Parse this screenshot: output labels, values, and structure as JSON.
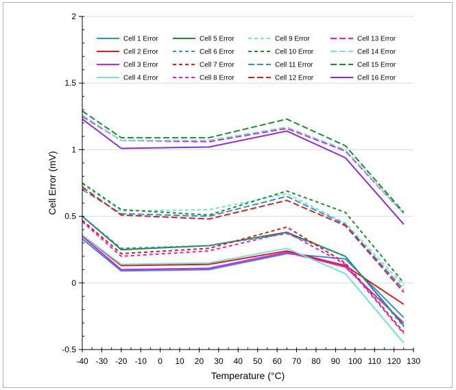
{
  "chart_data": {
    "type": "line",
    "xlabel": "Temperature (°C)",
    "ylabel": "Cell Error (mV)",
    "xlim": [
      -40,
      130
    ],
    "ylim": [
      -0.5,
      2
    ],
    "xticks": [
      -40,
      -30,
      -20,
      -10,
      0,
      10,
      20,
      30,
      40,
      50,
      60,
      70,
      80,
      90,
      100,
      110,
      120,
      130
    ],
    "yticks": [
      -0.5,
      0,
      0.5,
      1,
      1.5,
      2
    ],
    "ytick_labels": [
      "-0.5",
      "0",
      "0.5",
      "1",
      "1.5",
      "2"
    ],
    "grid": "horizontal",
    "legend_position": "top",
    "x": [
      -40,
      -20,
      25,
      65,
      95,
      125
    ],
    "series": [
      {
        "name": "Cell 1 Error",
        "color": "#2e8fdc",
        "dash": "solid",
        "values": [
          0.33,
          0.09,
          0.1,
          0.22,
          0.18,
          -0.26
        ]
      },
      {
        "name": "Cell 2 Error",
        "color": "#e01b1b",
        "dash": "solid",
        "values": [
          0.36,
          0.13,
          0.14,
          0.24,
          0.13,
          -0.16
        ]
      },
      {
        "name": "Cell 3 Error",
        "color": "#e319e3",
        "dash": "solid",
        "values": [
          0.35,
          0.1,
          0.11,
          0.23,
          0.12,
          -0.3
        ]
      },
      {
        "name": "Cell 4 Error",
        "color": "#6fe8c8",
        "dash": "solid",
        "values": [
          0.36,
          0.14,
          0.15,
          0.26,
          0.07,
          -0.45
        ]
      },
      {
        "name": "Cell 5 Error",
        "color": "#1f8a2a",
        "dash": "solid",
        "values": [
          0.5,
          0.25,
          0.28,
          0.38,
          0.2,
          -0.32
        ]
      },
      {
        "name": "Cell 6 Error",
        "color": "#2e8fdc",
        "dash": "dash",
        "values": [
          0.5,
          0.26,
          0.28,
          0.37,
          0.2,
          -0.33
        ]
      },
      {
        "name": "Cell 7 Error",
        "color": "#e01b1b",
        "dash": "dash",
        "values": [
          0.47,
          0.22,
          0.26,
          0.42,
          0.15,
          -0.37
        ]
      },
      {
        "name": "Cell 8 Error",
        "color": "#e319e3",
        "dash": "dash",
        "values": [
          0.46,
          0.2,
          0.24,
          0.38,
          0.14,
          -0.38
        ]
      },
      {
        "name": "Cell 9 Error",
        "color": "#6fe8c8",
        "dash": "dash",
        "values": [
          0.74,
          0.54,
          0.55,
          0.67,
          0.45,
          -0.02
        ]
      },
      {
        "name": "Cell 10 Error",
        "color": "#1f8a2a",
        "dash": "dash",
        "values": [
          0.75,
          0.55,
          0.51,
          0.69,
          0.53,
          0.0
        ]
      },
      {
        "name": "Cell 11 Error",
        "color": "#2e8fdc",
        "dash": "longdash",
        "values": [
          0.7,
          0.52,
          0.5,
          0.65,
          0.44,
          -0.05
        ]
      },
      {
        "name": "Cell 12 Error",
        "color": "#e01b1b",
        "dash": "longdash",
        "values": [
          0.72,
          0.51,
          0.48,
          0.62,
          0.43,
          -0.07
        ]
      },
      {
        "name": "Cell 13 Error",
        "color": "#e319e3",
        "dash": "longdash",
        "values": [
          1.25,
          1.07,
          1.06,
          1.16,
          0.99,
          0.52
        ]
      },
      {
        "name": "Cell 14 Error",
        "color": "#6fe8c8",
        "dash": "longdash",
        "values": [
          1.26,
          1.07,
          1.07,
          1.17,
          1.0,
          0.52
        ]
      },
      {
        "name": "Cell 15 Error",
        "color": "#1f8a2a",
        "dash": "longdash",
        "values": [
          1.29,
          1.09,
          1.09,
          1.23,
          1.03,
          0.53
        ]
      },
      {
        "name": "Cell 16 Error",
        "color": "#8a2be2",
        "dash": "solid",
        "values": [
          1.23,
          1.01,
          1.02,
          1.14,
          0.94,
          0.44
        ]
      }
    ]
  }
}
